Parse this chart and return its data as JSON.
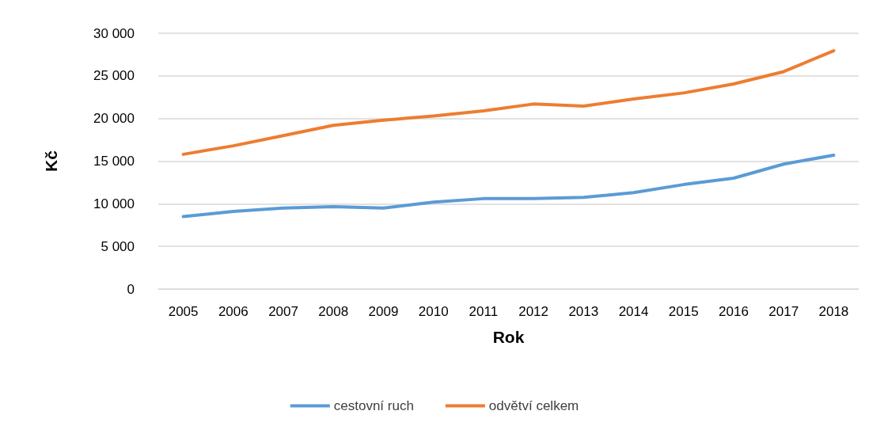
{
  "chart_data": {
    "type": "line",
    "xlabel": "Rok",
    "ylabel": "Kč",
    "categories": [
      "2005",
      "2006",
      "2007",
      "2008",
      "2009",
      "2010",
      "2011",
      "2012",
      "2013",
      "2014",
      "2015",
      "2016",
      "2017",
      "2018"
    ],
    "series": [
      {
        "name": "cestovní ruch",
        "color": "#5b9bd5",
        "values": [
          8500,
          9100,
          9500,
          9650,
          9500,
          10200,
          10600,
          10600,
          10750,
          11300,
          12250,
          13000,
          14650,
          15700
        ]
      },
      {
        "name": "odvětví celkem",
        "color": "#ed7d31",
        "values": [
          15800,
          16800,
          18000,
          19200,
          19800,
          20300,
          20900,
          21700,
          21450,
          22300,
          23000,
          24050,
          25500,
          27950
        ]
      }
    ],
    "ylim": [
      0,
      30000
    ],
    "yticks": [
      0,
      5000,
      10000,
      15000,
      20000,
      25000,
      30000
    ],
    "grid": "y",
    "legend": "bottom",
    "marker": "none",
    "line_style": "solid"
  }
}
